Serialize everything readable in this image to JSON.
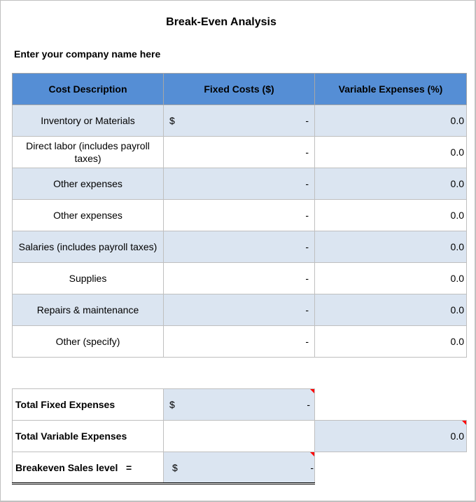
{
  "document": {
    "title": "Break-Even Analysis",
    "company_placeholder": "Enter your company name here"
  },
  "cost_table": {
    "headers": [
      "Cost Description",
      "Fixed Costs ($)",
      "Variable Expenses (%)"
    ],
    "rows": [
      {
        "description": "Inventory or Materials",
        "currency": "$",
        "fixed": "-",
        "variable": "0.0"
      },
      {
        "description": "Direct labor (includes payroll taxes)",
        "currency": "",
        "fixed": "-",
        "variable": "0.0"
      },
      {
        "description": "Other expenses",
        "currency": "",
        "fixed": "-",
        "variable": "0.0"
      },
      {
        "description": "Other expenses",
        "currency": "",
        "fixed": "-",
        "variable": "0.0"
      },
      {
        "description": "Salaries (includes payroll taxes)",
        "currency": "",
        "fixed": "-",
        "variable": "0.0"
      },
      {
        "description": "Supplies",
        "currency": "",
        "fixed": "-",
        "variable": "0.0"
      },
      {
        "description": "Repairs & maintenance",
        "currency": "",
        "fixed": "-",
        "variable": "0.0"
      },
      {
        "description": "Other (specify)",
        "currency": "",
        "fixed": "-",
        "variable": "0.0"
      }
    ]
  },
  "totals": {
    "total_fixed": {
      "label": "Total Fixed Expenses",
      "currency": "$",
      "value": "-"
    },
    "total_variable": {
      "label": "Total Variable Expenses",
      "value": "0.0"
    },
    "breakeven": {
      "label": "Breakeven Sales level   =",
      "currency": "$",
      "value": "-"
    }
  },
  "colors": {
    "header_fill": "#558ed5",
    "alt_row_fill": "#dbe5f1",
    "comment_flag": "#ff0000"
  }
}
